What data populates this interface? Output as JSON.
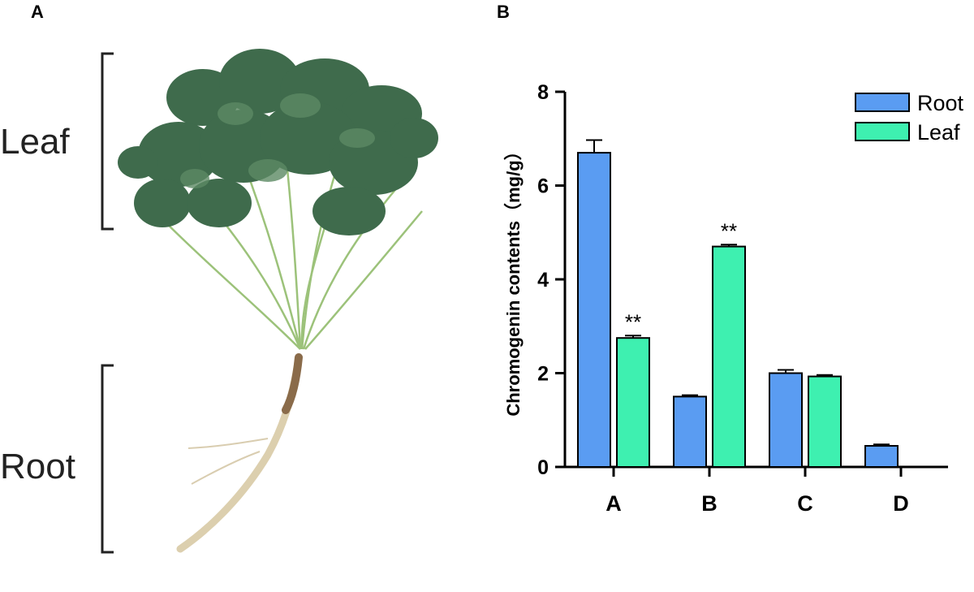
{
  "panels": {
    "a_letter": "A",
    "b_letter": "B"
  },
  "photo_labels": {
    "leaf": "Leaf",
    "root": "Root"
  },
  "colors": {
    "root": "#5a9cf2",
    "leaf": "#3ef0b0",
    "stem": "#9cc27a",
    "foliage": "#3f6b4c",
    "rootbody": "#dccfae"
  },
  "chart_data": {
    "type": "bar",
    "categories": [
      "A",
      "B",
      "C",
      "D"
    ],
    "series": [
      {
        "name": "Root",
        "values": [
          6.7,
          1.5,
          2.0,
          0.45
        ],
        "errors": [
          0.27,
          0.03,
          0.07,
          0.03
        ],
        "color": "#5a9cf2"
      },
      {
        "name": "Leaf",
        "values": [
          2.75,
          4.7,
          1.93,
          null
        ],
        "errors": [
          0.05,
          0.04,
          0.03,
          null
        ],
        "color": "#3ef0b0"
      }
    ],
    "significance": [
      {
        "category": "A",
        "series": "Leaf",
        "label": "**"
      },
      {
        "category": "B",
        "series": "Leaf",
        "label": "**"
      }
    ],
    "ylabel": "Chromogenin contents（mg/g）",
    "xlabel": "",
    "ylim": [
      0,
      8
    ],
    "yticks": [
      0,
      2,
      4,
      6,
      8
    ],
    "grid": false,
    "legend": "top-right"
  }
}
